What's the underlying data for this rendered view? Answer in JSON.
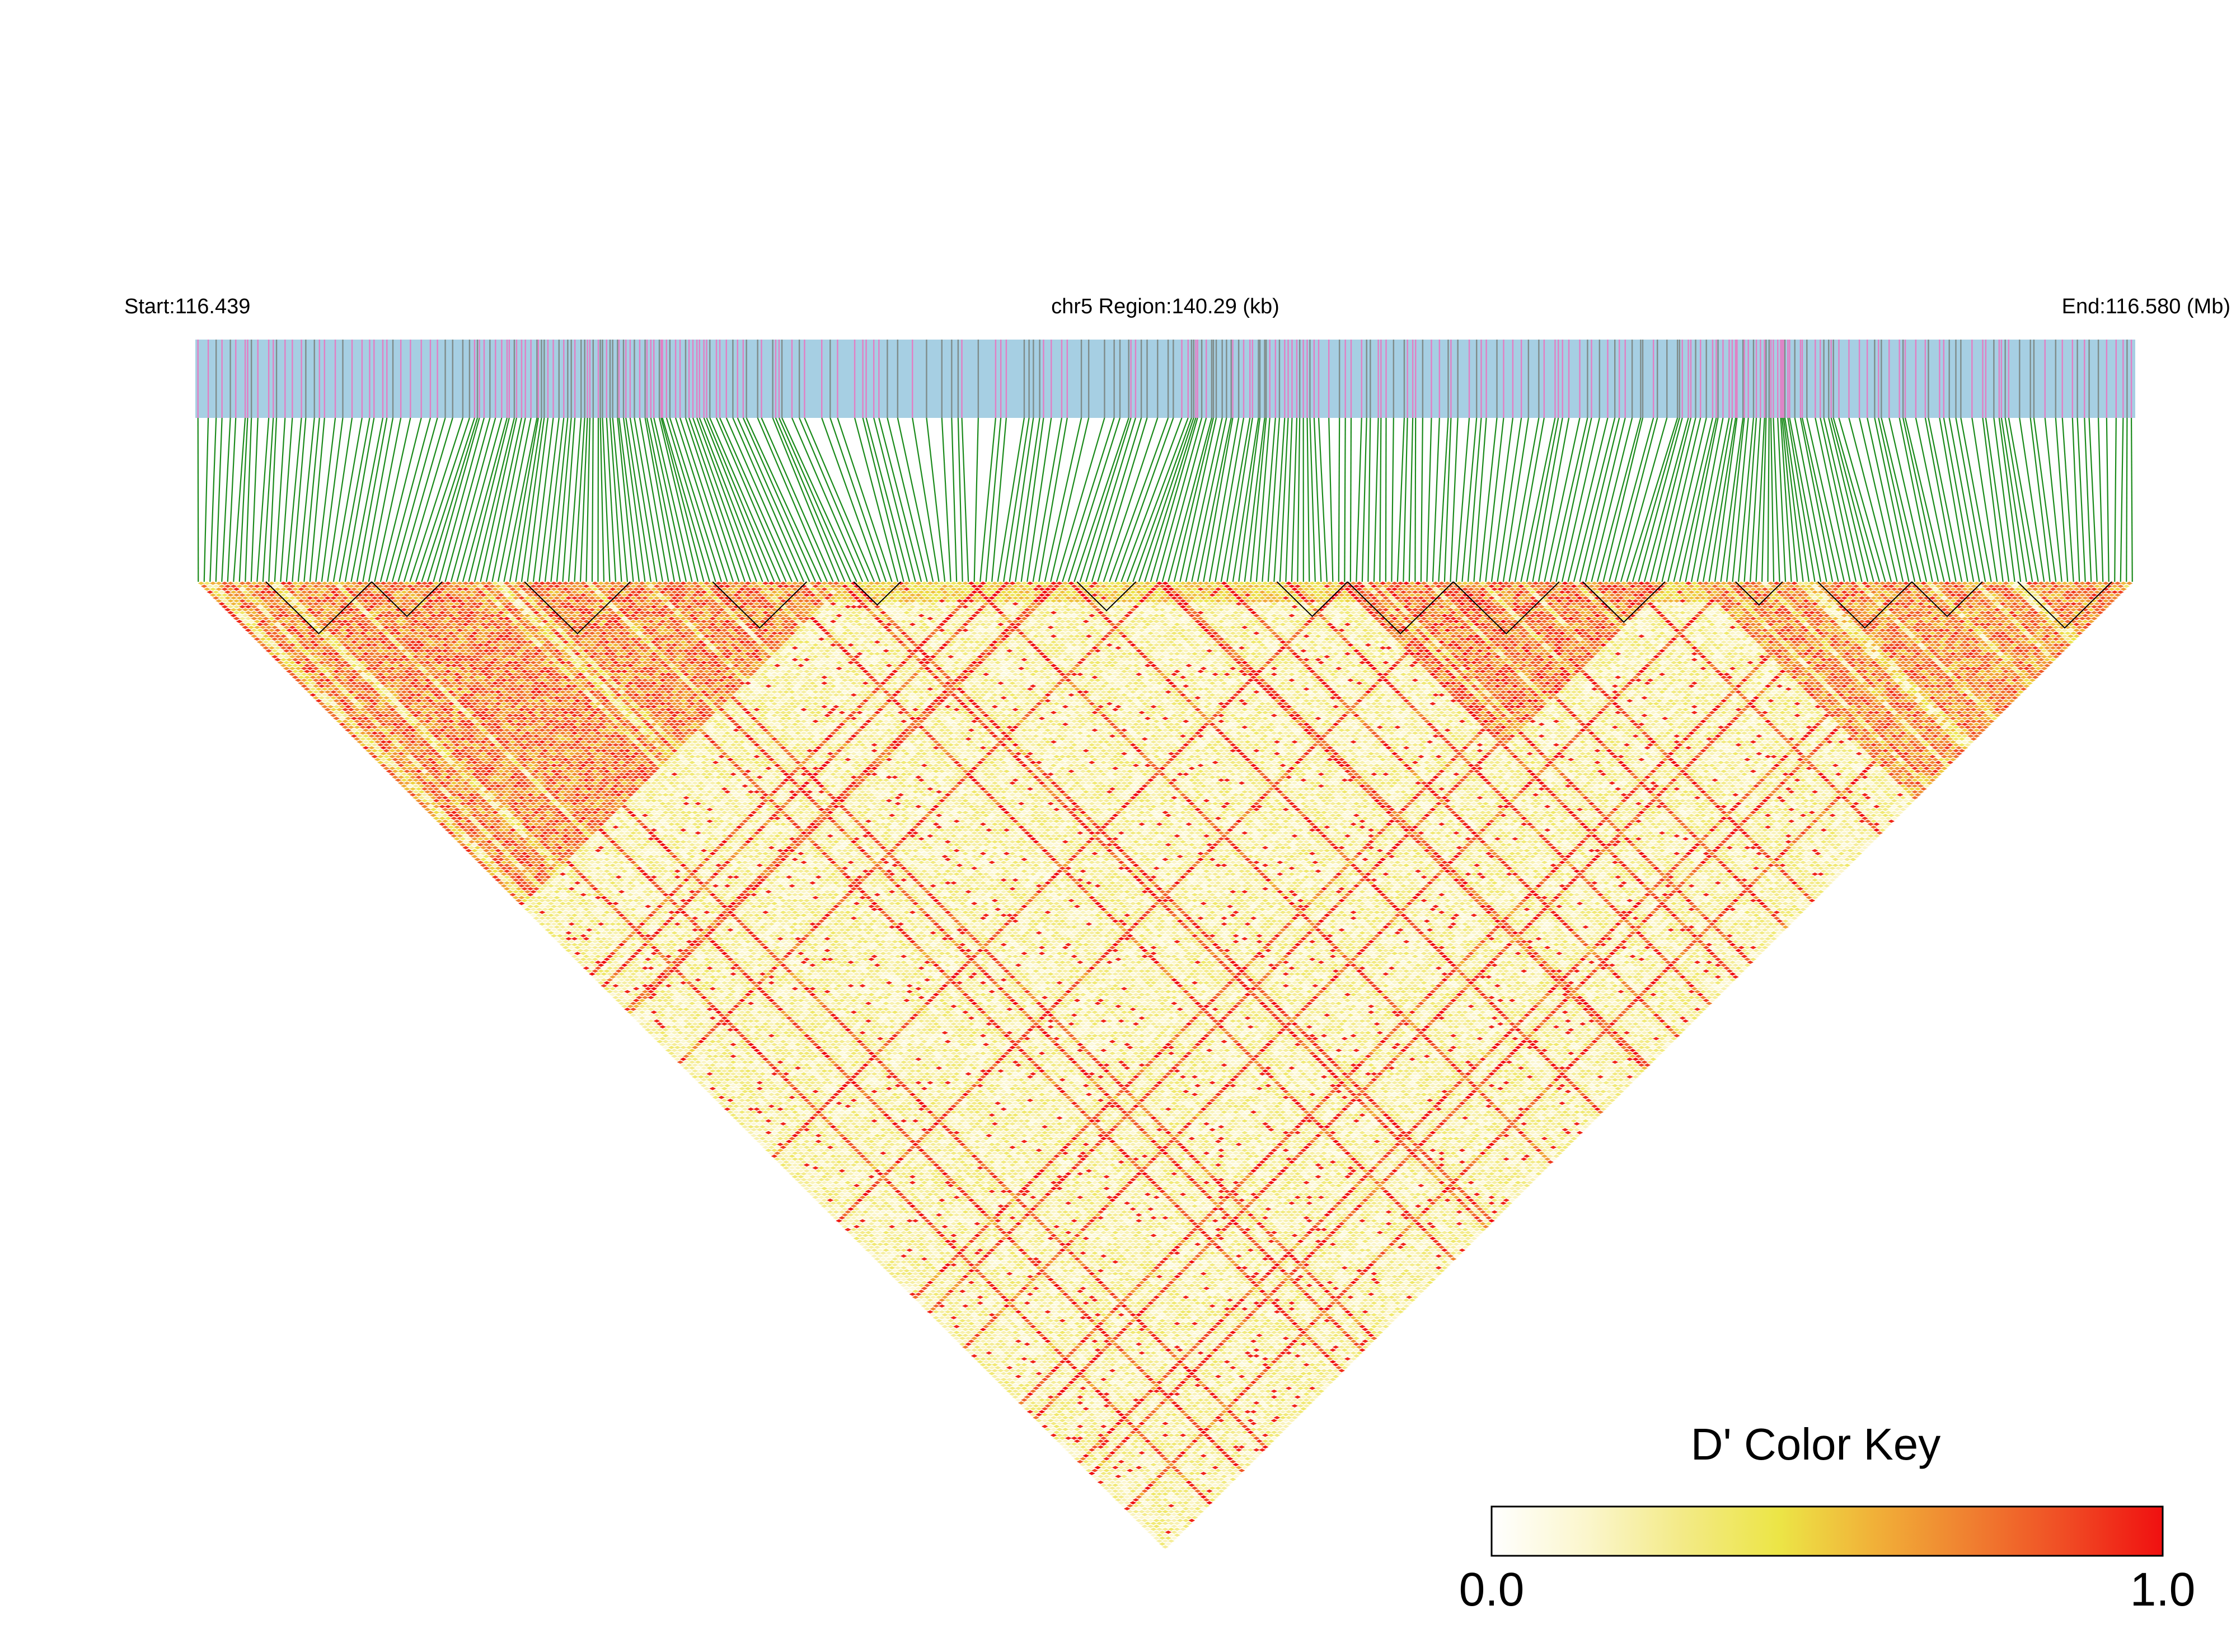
{
  "chart_data": {
    "type": "heatmap",
    "subtype": "linkage-disequilibrium-triangle",
    "region": {
      "start_label": "Start:116.439",
      "center_label": "chr5 Region:140.29 (kb)",
      "end_label": "End:116.580 (Mb)",
      "chromosome": "chr5",
      "start_mb": 116.439,
      "end_mb": 116.58,
      "length_kb": 140.29
    },
    "snp_count": 330,
    "metric": "D'",
    "color_key": {
      "title": "D' Color Key",
      "min_label": "0.0",
      "max_label": "1.0",
      "min": 0.0,
      "max": 1.0,
      "colors": [
        "#ffffff",
        "#fbf6cc",
        "#f3ea86",
        "#ece546",
        "#f1b038",
        "#f07f30",
        "#f04b24",
        "#f01010"
      ]
    },
    "track_colors": {
      "band": "#a6cfe3",
      "snp_tick_a": "#e27fc4",
      "snp_tick_b": "#7f8c8a",
      "connector": "#1a8a1a",
      "block_outline": "#000000"
    },
    "ld_blocks_description": "High D' (red) in the left third and right third of the region; low D' (pale yellow) in the central region",
    "ld_blocks": [
      {
        "from_snp": 0,
        "to_snp": 110,
        "level": 0.88
      },
      {
        "from_snp": 195,
        "to_snp": 250,
        "level": 0.92
      },
      {
        "from_snp": 255,
        "to_snp": 330,
        "level": 0.85
      }
    ]
  }
}
